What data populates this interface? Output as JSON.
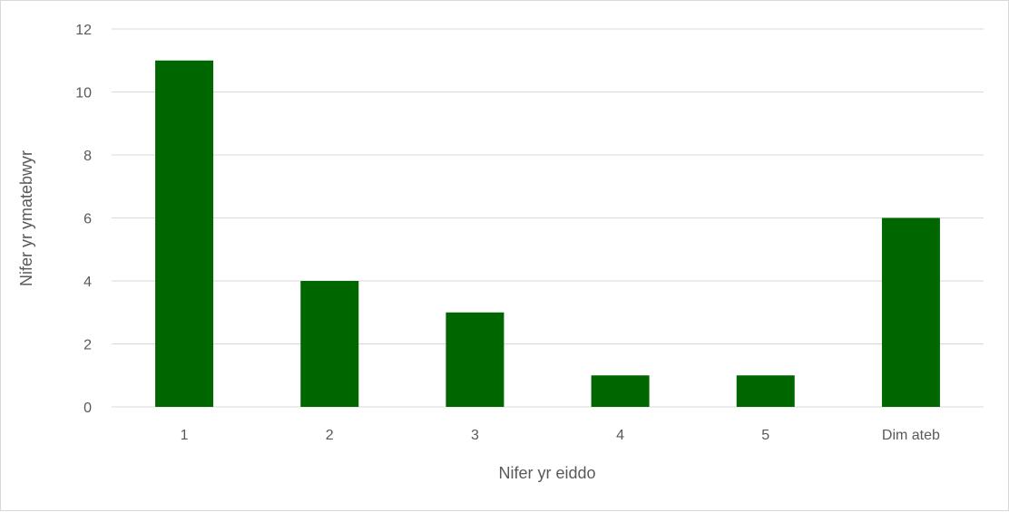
{
  "chart_data": {
    "type": "bar",
    "title": "",
    "categories": [
      "1",
      "2",
      "3",
      "4",
      "5",
      "Dim ateb"
    ],
    "values": [
      11,
      4,
      3,
      1,
      1,
      6
    ],
    "xlabel": "Nifer yr eiddo",
    "ylabel": "Nifer yr ymatebwyr",
    "ylim": [
      0,
      12
    ],
    "yticks": [
      0,
      2,
      4,
      6,
      8,
      10,
      12
    ],
    "grid": true,
    "legend": "none",
    "bar_color": "#006600"
  }
}
